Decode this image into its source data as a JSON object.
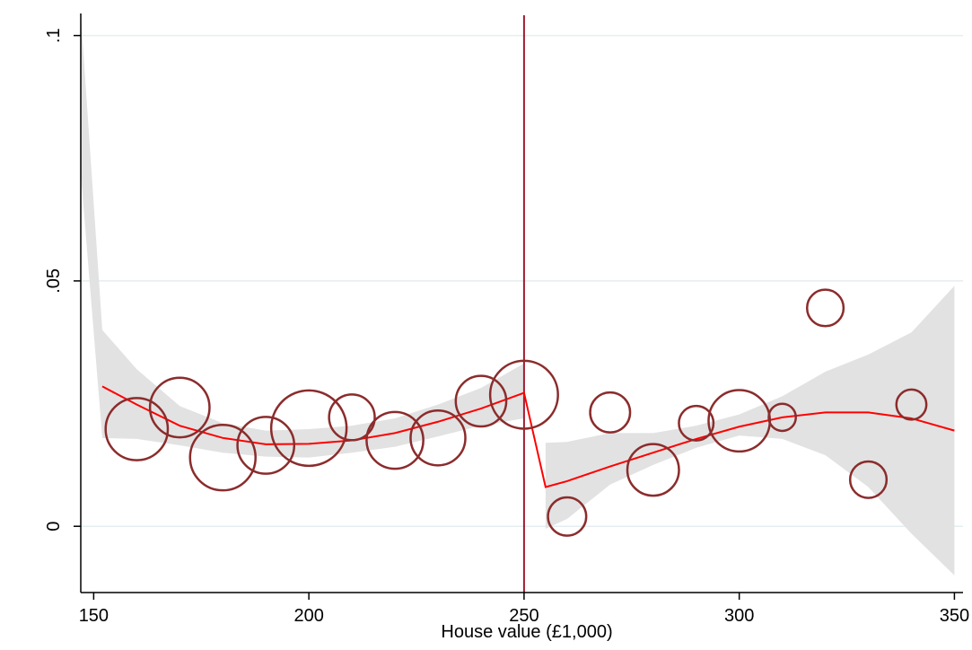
{
  "chart_data": {
    "type": "scatter",
    "title": "",
    "xlabel": "House value (£1,000)",
    "ylabel": "",
    "xlim": [
      147,
      352
    ],
    "ylim": [
      -0.0135,
      0.1045
    ],
    "x_ticks": [
      150,
      200,
      250,
      300,
      350
    ],
    "x_tick_labels": [
      "150",
      "200",
      "250",
      "300",
      "350"
    ],
    "y_ticks": [
      0,
      0.05,
      0.1
    ],
    "y_tick_labels": [
      "0",
      ".05",
      ".1"
    ],
    "grid": "horizontal",
    "threshold": 250,
    "colors": {
      "marker": "#8B2C2C",
      "fit": "#FF0000",
      "ci": "#E2E2E2",
      "threshold": "#A01A30",
      "grid": "#E4EEF0"
    },
    "scatter_points": [
      {
        "x": 160,
        "y": 0.0198,
        "size": 2.8
      },
      {
        "x": 170,
        "y": 0.0242,
        "size": 2.5
      },
      {
        "x": 180,
        "y": 0.014,
        "size": 3.2
      },
      {
        "x": 190,
        "y": 0.0165,
        "size": 2.2
      },
      {
        "x": 200,
        "y": 0.02,
        "size": 4.6
      },
      {
        "x": 210,
        "y": 0.0222,
        "size": 1.2
      },
      {
        "x": 220,
        "y": 0.0175,
        "size": 2.2
      },
      {
        "x": 230,
        "y": 0.018,
        "size": 2.0
      },
      {
        "x": 240,
        "y": 0.0255,
        "size": 1.6
      },
      {
        "x": 250,
        "y": 0.0268,
        "size": 3.5
      },
      {
        "x": 260,
        "y": 0.002,
        "size": 0.7
      },
      {
        "x": 270,
        "y": 0.0232,
        "size": 0.8
      },
      {
        "x": 280,
        "y": 0.0115,
        "size": 1.7
      },
      {
        "x": 290,
        "y": 0.021,
        "size": 0.5
      },
      {
        "x": 300,
        "y": 0.0215,
        "size": 2.7
      },
      {
        "x": 310,
        "y": 0.0222,
        "size": 0.2
      },
      {
        "x": 320,
        "y": 0.0445,
        "size": 0.6
      },
      {
        "x": 330,
        "y": 0.0095,
        "size": 0.6
      },
      {
        "x": 340,
        "y": 0.0248,
        "size": 0.3
      }
    ],
    "fit_left": {
      "x": [
        152,
        160,
        170,
        180,
        190,
        200,
        210,
        220,
        230,
        240,
        250
      ],
      "y": [
        0.0285,
        0.0248,
        0.0205,
        0.018,
        0.0167,
        0.0168,
        0.0175,
        0.019,
        0.0213,
        0.024,
        0.0272
      ]
    },
    "fit_right": {
      "x": [
        255,
        260,
        270,
        280,
        290,
        300,
        310,
        320,
        330,
        340,
        350
      ],
      "y": [
        0.008,
        0.0092,
        0.0122,
        0.015,
        0.0178,
        0.0203,
        0.0222,
        0.0232,
        0.0232,
        0.022,
        0.0195
      ]
    },
    "ci_left": {
      "x": [
        147,
        152,
        160,
        170,
        180,
        190,
        200,
        210,
        220,
        230,
        240,
        250
      ],
      "lower": [
        0.072,
        0.018,
        0.0178,
        0.0165,
        0.015,
        0.0142,
        0.014,
        0.015,
        0.0162,
        0.0183,
        0.0205,
        0.022
      ],
      "upper": [
        0.1045,
        0.04,
        0.032,
        0.0245,
        0.021,
        0.0195,
        0.0198,
        0.0205,
        0.022,
        0.0248,
        0.0282,
        0.0332
      ]
    },
    "ci_right": {
      "x": [
        255,
        260,
        270,
        280,
        290,
        300,
        310,
        320,
        330,
        340,
        350
      ],
      "lower": [
        -0.0005,
        0.0015,
        0.0085,
        0.0125,
        0.016,
        0.0185,
        0.0178,
        0.0145,
        0.008,
        -0.0015,
        -0.01
      ],
      "upper": [
        0.017,
        0.0172,
        0.019,
        0.019,
        0.0205,
        0.0228,
        0.0265,
        0.0315,
        0.035,
        0.0395,
        0.049
      ]
    }
  }
}
